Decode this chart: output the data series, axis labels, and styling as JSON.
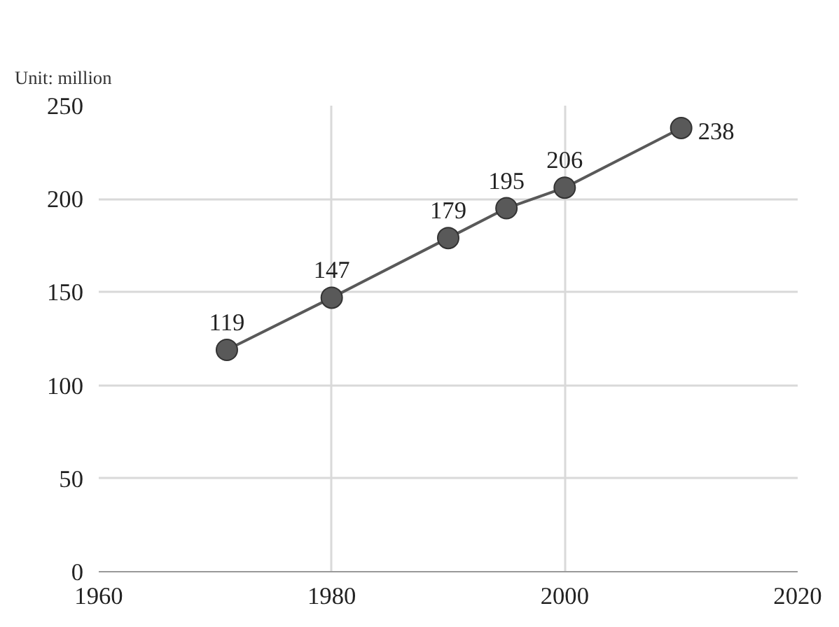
{
  "chart_data": {
    "type": "line",
    "annotations": [
      "Unit: million"
    ],
    "x": [
      1971,
      1980,
      1990,
      1995,
      2000,
      2010
    ],
    "series": [
      {
        "color": "#595959",
        "values": [
          119,
          147,
          179,
          195,
          206,
          238
        ]
      }
    ],
    "xlim": [
      1960,
      2020
    ],
    "xticks": [
      1960,
      1980,
      2000,
      2020
    ],
    "ylim": [
      0,
      250
    ],
    "yticks": [
      0,
      50,
      100,
      150,
      200,
      250
    ],
    "grid": true,
    "marker": "circle",
    "line_style": "solid",
    "data_labels": true
  }
}
